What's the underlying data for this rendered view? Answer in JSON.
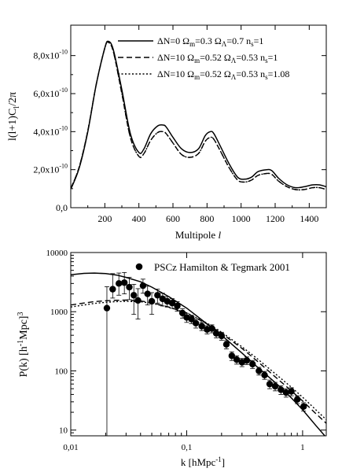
{
  "chart_data": [
    {
      "type": "line",
      "xlabel": "Multipole l",
      "ylabel": "l(l+1)Cₗ/2π",
      "xlim": [
        0,
        1500
      ],
      "ylim": [
        0,
        9.6
      ],
      "y_unit": "x10^-10",
      "xticks": [
        200,
        400,
        600,
        800,
        1000,
        1200,
        1400
      ],
      "yticks": [
        {
          "v": 0,
          "m": "0,0",
          "e": ""
        },
        {
          "v": 2,
          "m": "2,0x10",
          "e": "-10"
        },
        {
          "v": 4,
          "m": "4,0x10",
          "e": "-10"
        },
        {
          "v": 6,
          "m": "6,0x10",
          "e": "-10"
        },
        {
          "v": 8,
          "m": "8,0x10",
          "e": "-10"
        }
      ],
      "legend_position": "top-right",
      "legend": [
        {
          "dash": "solid",
          "dn": "ΔN=0",
          "om": "0.3",
          "ol": "0.7",
          "ns": "1"
        },
        {
          "dash": "dashed",
          "dn": "ΔN=10",
          "om": "0.52",
          "ol": "0.53",
          "ns": "1"
        },
        {
          "dash": "dotted",
          "dn": "ΔN=10",
          "om": "0.52",
          "ol": "0.53",
          "ns": "1.08"
        }
      ],
      "series": [
        {
          "dash": "solid",
          "x": [
            2,
            50,
            100,
            150,
            200,
            220,
            250,
            300,
            350,
            400,
            430,
            470,
            510,
            540,
            560,
            600,
            650,
            700,
            750,
            790,
            820,
            840,
            880,
            930,
            980,
            1020,
            1060,
            1100,
            1150,
            1180,
            1220,
            1270,
            1320,
            1370,
            1420,
            1460,
            1500
          ],
          "y": [
            1.0,
            2.1,
            4.0,
            6.5,
            8.4,
            8.75,
            8.3,
            6.2,
            3.9,
            2.9,
            3.1,
            3.9,
            4.3,
            4.35,
            4.25,
            3.7,
            3.1,
            2.9,
            3.1,
            3.8,
            4.0,
            3.9,
            3.2,
            2.3,
            1.6,
            1.5,
            1.6,
            1.9,
            2.0,
            1.95,
            1.55,
            1.2,
            1.05,
            1.1,
            1.2,
            1.2,
            1.1
          ]
        },
        {
          "dash": "dashed",
          "x": [
            2,
            50,
            100,
            150,
            200,
            220,
            250,
            300,
            350,
            400,
            430,
            470,
            510,
            540,
            560,
            600,
            650,
            700,
            750,
            790,
            820,
            840,
            880,
            930,
            980,
            1020,
            1060,
            1100,
            1150,
            1180,
            1220,
            1270,
            1320,
            1370,
            1420,
            1460,
            1500
          ],
          "y": [
            1.05,
            2.15,
            4.05,
            6.5,
            8.4,
            8.7,
            8.2,
            6.0,
            3.7,
            2.7,
            2.85,
            3.55,
            3.95,
            4.0,
            3.9,
            3.4,
            2.8,
            2.65,
            2.85,
            3.5,
            3.7,
            3.6,
            2.95,
            2.1,
            1.45,
            1.35,
            1.45,
            1.7,
            1.8,
            1.75,
            1.4,
            1.1,
            0.95,
            0.95,
            1.05,
            1.05,
            0.95
          ]
        },
        {
          "dash": "dotted",
          "x": [
            2,
            50,
            100,
            150,
            200,
            220,
            250,
            300,
            350,
            400,
            430,
            470,
            510,
            540,
            560,
            600,
            650,
            700,
            750,
            790,
            820,
            840,
            880,
            930,
            980,
            1020,
            1060,
            1100,
            1150,
            1180,
            1220,
            1270,
            1320,
            1370,
            1420,
            1460,
            1500
          ],
          "y": [
            1.05,
            2.15,
            4.05,
            6.5,
            8.4,
            8.7,
            8.2,
            6.0,
            3.7,
            2.7,
            2.85,
            3.55,
            3.95,
            4.0,
            3.9,
            3.4,
            2.8,
            2.65,
            2.85,
            3.5,
            3.7,
            3.6,
            2.95,
            2.1,
            1.45,
            1.35,
            1.45,
            1.7,
            1.8,
            1.75,
            1.4,
            1.1,
            0.95,
            0.95,
            1.05,
            1.05,
            0.95
          ]
        }
      ]
    },
    {
      "type": "scatter",
      "xscale": "log",
      "yscale": "log",
      "xlabel": "k [hMpc⁻¹]",
      "ylabel": "P(k) [h⁻³Mpc³]",
      "xlim": [
        0.01,
        1.6
      ],
      "ylim": [
        8,
        10000
      ],
      "xticks": [
        {
          "v": 0.01,
          "t": "0,01"
        },
        {
          "v": 0.1,
          "t": "0,1"
        },
        {
          "v": 1,
          "t": "1"
        }
      ],
      "yticks": [
        {
          "v": 10,
          "t": "10"
        },
        {
          "v": 100,
          "t": "100"
        },
        {
          "v": 1000,
          "t": "1000"
        },
        {
          "v": 10000,
          "t": "10000"
        }
      ],
      "legend_position": "top-right",
      "legend_label": "PSCz Hamilton & Tegmark 2001",
      "points": {
        "k": [
          0.0205,
          0.023,
          0.026,
          0.029,
          0.032,
          0.035,
          0.038,
          0.042,
          0.046,
          0.05,
          0.056,
          0.062,
          0.068,
          0.075,
          0.083,
          0.092,
          0.1,
          0.11,
          0.12,
          0.135,
          0.15,
          0.165,
          0.18,
          0.2,
          0.22,
          0.245,
          0.27,
          0.3,
          0.33,
          0.37,
          0.42,
          0.47,
          0.52,
          0.58,
          0.65,
          0.72,
          0.8,
          0.9,
          1.02
        ],
        "pk": [
          1150,
          2400,
          3000,
          3100,
          2600,
          1900,
          1550,
          2750,
          2000,
          1500,
          1900,
          1650,
          1500,
          1400,
          1250,
          950,
          800,
          750,
          640,
          570,
          500,
          520,
          430,
          390,
          280,
          180,
          155,
          140,
          150,
          130,
          100,
          85,
          60,
          55,
          48,
          43,
          45,
          33,
          25
        ],
        "err_lo": [
          1149,
          700,
          1100,
          1100,
          1000,
          1000,
          800,
          700,
          700,
          600,
          500,
          400,
          300,
          260,
          230,
          170,
          140,
          120,
          110,
          90,
          80,
          80,
          70,
          60,
          45,
          30,
          25,
          22,
          22,
          20,
          15,
          13,
          10,
          9,
          8,
          7,
          7,
          5,
          4
        ],
        "err_hi": [
          1500,
          2000,
          1500,
          1500,
          1200,
          1000,
          900,
          800,
          700,
          600,
          500,
          400,
          300,
          260,
          230,
          170,
          140,
          120,
          110,
          90,
          80,
          80,
          70,
          60,
          45,
          30,
          25,
          22,
          22,
          20,
          15,
          13,
          10,
          9,
          8,
          7,
          7,
          5,
          4
        ]
      },
      "series": [
        {
          "dash": "solid",
          "k": [
            0.01,
            0.013,
            0.016,
            0.02,
            0.025,
            0.03,
            0.04,
            0.05,
            0.07,
            0.1,
            0.15,
            0.2,
            0.3,
            0.4,
            0.6,
            0.8,
            1.0,
            1.3,
            1.6
          ],
          "pk": [
            4200,
            4450,
            4500,
            4400,
            4150,
            3800,
            3200,
            2600,
            1800,
            1150,
            620,
            400,
            200,
            120,
            60,
            35,
            22,
            12,
            7.5
          ]
        },
        {
          "dash": "dashed",
          "k": [
            0.01,
            0.013,
            0.016,
            0.02,
            0.025,
            0.03,
            0.04,
            0.05,
            0.07,
            0.1,
            0.15,
            0.2,
            0.3,
            0.4,
            0.6,
            0.8,
            1.0,
            1.3,
            1.6
          ],
          "pk": [
            1300,
            1400,
            1480,
            1530,
            1560,
            1570,
            1520,
            1420,
            1200,
            950,
            620,
            430,
            240,
            150,
            75,
            46,
            31,
            19,
            13
          ]
        },
        {
          "dash": "dotted",
          "k": [
            0.01,
            0.013,
            0.016,
            0.02,
            0.025,
            0.03,
            0.04,
            0.05,
            0.07,
            0.1,
            0.15,
            0.2,
            0.3,
            0.4,
            0.6,
            0.8,
            1.0,
            1.3,
            1.6
          ],
          "pk": [
            1200,
            1300,
            1380,
            1440,
            1480,
            1500,
            1470,
            1390,
            1190,
            960,
            640,
            450,
            255,
            165,
            85,
            53,
            36,
            22,
            15
          ]
        }
      ]
    }
  ]
}
